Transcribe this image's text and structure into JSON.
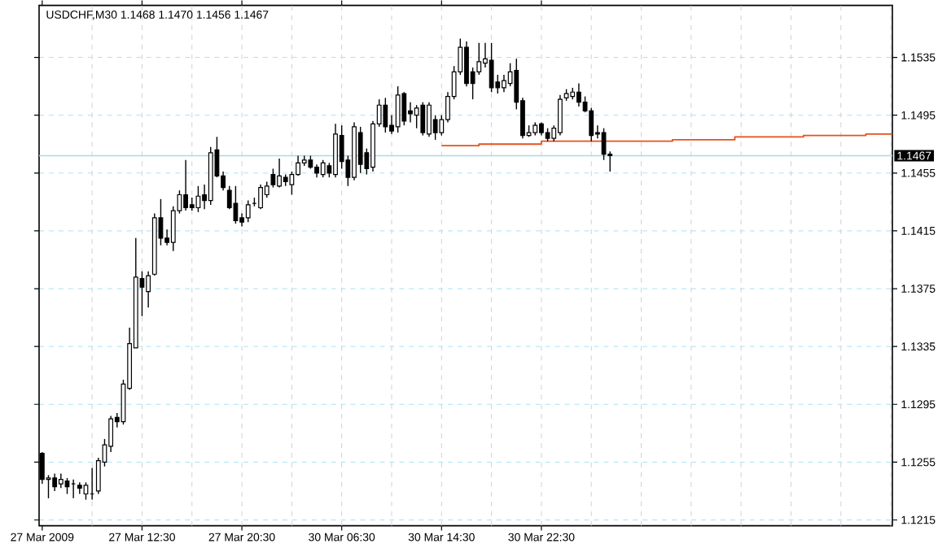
{
  "chart_data": {
    "type": "candlestick",
    "title": "USDCHF,M30 1.1468 1.1470 1.1456 1.1467",
    "categories": [
      "27 Mar 2009",
      null,
      null,
      null,
      null,
      null,
      null,
      null,
      null,
      null,
      null,
      null,
      null,
      null,
      null,
      null,
      "27 Mar 12:30",
      null,
      null,
      null,
      null,
      null,
      null,
      null,
      null,
      null,
      null,
      null,
      null,
      null,
      null,
      null,
      "27 Mar 20:30",
      null,
      null,
      null,
      null,
      null,
      null,
      null,
      null,
      null,
      null,
      null,
      null,
      null,
      null,
      null,
      "30 Mar 06:30",
      null,
      null,
      null,
      null,
      null,
      null,
      null,
      null,
      null,
      null,
      null,
      null,
      null,
      null,
      null,
      "30 Mar 14:30",
      null,
      null,
      null,
      null,
      null,
      null,
      null,
      null,
      null,
      null,
      null,
      null,
      null,
      null,
      null,
      "30 Mar 22:30",
      null,
      null,
      null,
      null,
      null,
      null,
      null,
      null,
      null,
      null,
      null,
      null,
      null,
      null,
      null,
      null,
      null,
      null,
      null,
      null,
      null,
      null,
      null,
      null,
      null,
      null,
      null,
      null,
      null,
      null,
      null,
      null,
      null,
      null,
      null,
      null,
      null,
      null,
      null,
      null,
      null,
      null,
      null,
      null,
      null,
      null,
      null,
      null,
      null,
      null,
      null,
      null,
      null,
      null,
      null,
      null
    ],
    "ohlc": [
      [
        1.1261,
        1.1262,
        1.124,
        1.1243
      ],
      [
        1.1243,
        1.1246,
        1.123,
        1.1244
      ],
      [
        1.1244,
        1.1247,
        1.1235,
        1.1238
      ],
      [
        1.124,
        1.1247,
        1.1237,
        1.1243
      ],
      [
        1.1242,
        1.1244,
        1.1233,
        1.1238
      ],
      [
        1.124,
        1.1243,
        1.123,
        1.124
      ],
      [
        1.1239,
        1.1241,
        1.1233,
        1.1237
      ],
      [
        1.1233,
        1.1241,
        1.1229,
        1.1239
      ],
      [
        1.1233,
        1.1251,
        1.1229,
        1.1233
      ],
      [
        1.1235,
        1.1258,
        1.1233,
        1.1256
      ],
      [
        1.1255,
        1.1271,
        1.1252,
        1.1267
      ],
      [
        1.1266,
        1.1287,
        1.1262,
        1.1285
      ],
      [
        1.1286,
        1.1289,
        1.1279,
        1.1283
      ],
      [
        1.1283,
        1.1312,
        1.1281,
        1.1309
      ],
      [
        1.1306,
        1.1348,
        1.1305,
        1.1337
      ],
      [
        1.1334,
        1.141,
        1.1334,
        1.1383
      ],
      [
        1.1382,
        1.1387,
        1.1356,
        1.1376
      ],
      [
        1.1373,
        1.1387,
        1.1362,
        1.1384
      ],
      [
        1.1385,
        1.1427,
        1.1384,
        1.1424
      ],
      [
        1.1424,
        1.1437,
        1.1405,
        1.141
      ],
      [
        1.141,
        1.1416,
        1.1405,
        1.1407
      ],
      [
        1.1407,
        1.1432,
        1.1401,
        1.1429
      ],
      [
        1.1429,
        1.1443,
        1.1427,
        1.144
      ],
      [
        1.144,
        1.1464,
        1.1429,
        1.1431
      ],
      [
        1.1433,
        1.1438,
        1.1429,
        1.1431
      ],
      [
        1.1431,
        1.1446,
        1.1428,
        1.1439
      ],
      [
        1.144,
        1.1447,
        1.143,
        1.1436
      ],
      [
        1.1436,
        1.1473,
        1.1433,
        1.1469
      ],
      [
        1.1471,
        1.148,
        1.1452,
        1.1453
      ],
      [
        1.1453,
        1.1456,
        1.1443,
        1.1445
      ],
      [
        1.1443,
        1.1446,
        1.143,
        1.1431
      ],
      [
        1.1434,
        1.1446,
        1.142,
        1.1422
      ],
      [
        1.1424,
        1.1427,
        1.1418,
        1.1421
      ],
      [
        1.1424,
        1.1436,
        1.1421,
        1.1433
      ],
      [
        1.1434,
        1.1438,
        1.1432,
        1.1434
      ],
      [
        1.1431,
        1.1447,
        1.143,
        1.1445
      ],
      [
        1.144,
        1.1449,
        1.1438,
        1.1446
      ],
      [
        1.1454,
        1.1458,
        1.1445,
        1.1447
      ],
      [
        1.1446,
        1.1465,
        1.1445,
        1.1453
      ],
      [
        1.1452,
        1.1454,
        1.1446,
        1.1449
      ],
      [
        1.1447,
        1.1456,
        1.144,
        1.1454
      ],
      [
        1.1454,
        1.1467,
        1.1453,
        1.1462
      ],
      [
        1.1462,
        1.1467,
        1.146,
        1.1464
      ],
      [
        1.1464,
        1.1467,
        1.1458,
        1.1459
      ],
      [
        1.1459,
        1.1461,
        1.1452,
        1.1455
      ],
      [
        1.1454,
        1.1464,
        1.1452,
        1.1462
      ],
      [
        1.146,
        1.1462,
        1.1452,
        1.1455
      ],
      [
        1.1454,
        1.1489,
        1.1452,
        1.1482
      ],
      [
        1.1481,
        1.1488,
        1.1458,
        1.1463
      ],
      [
        1.1464,
        1.1467,
        1.1446,
        1.1452
      ],
      [
        1.1452,
        1.149,
        1.145,
        1.1487
      ],
      [
        1.1483,
        1.1487,
        1.1455,
        1.1461
      ],
      [
        1.1469,
        1.1472,
        1.1454,
        1.1458
      ],
      [
        1.1459,
        1.1491,
        1.1456,
        1.1489
      ],
      [
        1.1489,
        1.1506,
        1.1487,
        1.1502
      ],
      [
        1.1502,
        1.1507,
        1.1483,
        1.1487
      ],
      [
        1.1488,
        1.1495,
        1.1482,
        1.1484
      ],
      [
        1.1487,
        1.1515,
        1.1483,
        1.1509
      ],
      [
        1.151,
        1.1511,
        1.1488,
        1.1491
      ],
      [
        1.1498,
        1.1504,
        1.149,
        1.1496
      ],
      [
        1.1495,
        1.1502,
        1.1486,
        1.15
      ],
      [
        1.1502,
        1.1504,
        1.1481,
        1.1483
      ],
      [
        1.1482,
        1.1504,
        1.148,
        1.1502
      ],
      [
        1.1492,
        1.1495,
        1.1478,
        1.1483
      ],
      [
        1.1483,
        1.1495,
        1.1481,
        1.1492
      ],
      [
        1.1492,
        1.1511,
        1.149,
        1.1508
      ],
      [
        1.1508,
        1.1529,
        1.1506,
        1.1525
      ],
      [
        1.1525,
        1.1548,
        1.1523,
        1.1542
      ],
      [
        1.1542,
        1.1546,
        1.1515,
        1.1517
      ],
      [
        1.1525,
        1.1528,
        1.1506,
        1.1517
      ],
      [
        1.1525,
        1.1545,
        1.1523,
        1.1532
      ],
      [
        1.1531,
        1.1545,
        1.1528,
        1.1534
      ],
      [
        1.1533,
        1.1545,
        1.1511,
        1.1514
      ],
      [
        1.1518,
        1.1523,
        1.151,
        1.1514
      ],
      [
        1.1514,
        1.1523,
        1.1511,
        1.1519
      ],
      [
        1.1517,
        1.1531,
        1.1515,
        1.1525
      ],
      [
        1.1526,
        1.1534,
        1.1499,
        1.1504
      ],
      [
        1.1505,
        1.1507,
        1.1479,
        1.1481
      ],
      [
        1.1481,
        1.1488,
        1.148,
        1.1483
      ],
      [
        1.1483,
        1.149,
        1.1481,
        1.1488
      ],
      [
        1.1489,
        1.149,
        1.1481,
        1.1483
      ],
      [
        1.1483,
        1.1486,
        1.1477,
        1.1479
      ],
      [
        1.1479,
        1.1488,
        1.1477,
        1.1486
      ],
      [
        1.1483,
        1.1509,
        1.1481,
        1.1506
      ],
      [
        1.1507,
        1.1513,
        1.1505,
        1.151
      ],
      [
        1.1508,
        1.1514,
        1.1506,
        1.1511
      ],
      [
        1.1511,
        1.1517,
        1.1501,
        1.1504
      ],
      [
        1.1504,
        1.1508,
        1.1497,
        1.1498
      ],
      [
        1.1498,
        1.15,
        1.1477,
        1.1481
      ],
      [
        1.1483,
        1.1488,
        1.1479,
        1.1482
      ],
      [
        1.1483,
        1.1486,
        1.1464,
        1.1468
      ],
      [
        1.1468,
        1.147,
        1.1456,
        1.1467
      ],
      null,
      null,
      null,
      null,
      null,
      null,
      null,
      null,
      null,
      null,
      null,
      null,
      null,
      null,
      null,
      null,
      null,
      null,
      null,
      null,
      null,
      null,
      null,
      null,
      null,
      null,
      null,
      null,
      null,
      null,
      null,
      null,
      null,
      null,
      null,
      null,
      null,
      null,
      null,
      null,
      null,
      null,
      null,
      null,
      null
    ],
    "series": [
      {
        "type": "step",
        "color": "#e8501c",
        "values": [
          null,
          null,
          null,
          null,
          null,
          null,
          null,
          null,
          null,
          null,
          null,
          null,
          null,
          null,
          null,
          null,
          null,
          null,
          null,
          null,
          null,
          null,
          null,
          null,
          null,
          null,
          null,
          null,
          null,
          null,
          null,
          null,
          null,
          null,
          null,
          null,
          null,
          null,
          null,
          null,
          null,
          null,
          null,
          null,
          null,
          null,
          null,
          null,
          null,
          null,
          null,
          null,
          null,
          null,
          null,
          null,
          null,
          null,
          null,
          null,
          null,
          null,
          null,
          null,
          1.1474,
          1.1474,
          1.1474,
          1.1474,
          1.1474,
          1.1474,
          1.1475,
          1.1475,
          1.1475,
          1.1475,
          1.1475,
          1.1475,
          1.1475,
          1.1475,
          1.1475,
          1.1475,
          1.1477,
          1.1477,
          1.1477,
          1.1477,
          1.1477,
          1.1477,
          1.1477,
          1.1477,
          1.1477,
          1.1477,
          1.1477,
          1.1477,
          1.1477,
          1.1477,
          1.1477,
          1.1477,
          1.1477,
          1.1477,
          1.1477,
          1.1477,
          1.1477,
          1.1478,
          1.1478,
          1.1478,
          1.1478,
          1.1478,
          1.1478,
          1.1478,
          1.1478,
          1.1478,
          1.1478,
          1.148,
          1.148,
          1.148,
          1.148,
          1.148,
          1.148,
          1.148,
          1.148,
          1.148,
          1.148,
          1.148,
          1.1481,
          1.1481,
          1.1481,
          1.1481,
          1.1481,
          1.1481,
          1.1481,
          1.1481,
          1.1481,
          1.1481,
          1.1482,
          1.1482,
          1.1482,
          1.1482,
          1.1482
        ]
      }
    ],
    "ylim": [
      1.1211,
      1.1571
    ],
    "yticks": [
      1.1215,
      1.1255,
      1.1295,
      1.1335,
      1.1375,
      1.1415,
      1.1455,
      1.1495,
      1.1535
    ],
    "ref_lines": [
      {
        "axis": "y",
        "value": 1.1467,
        "label": "1.1467",
        "color": "#a8dce6"
      }
    ],
    "grid": true
  }
}
